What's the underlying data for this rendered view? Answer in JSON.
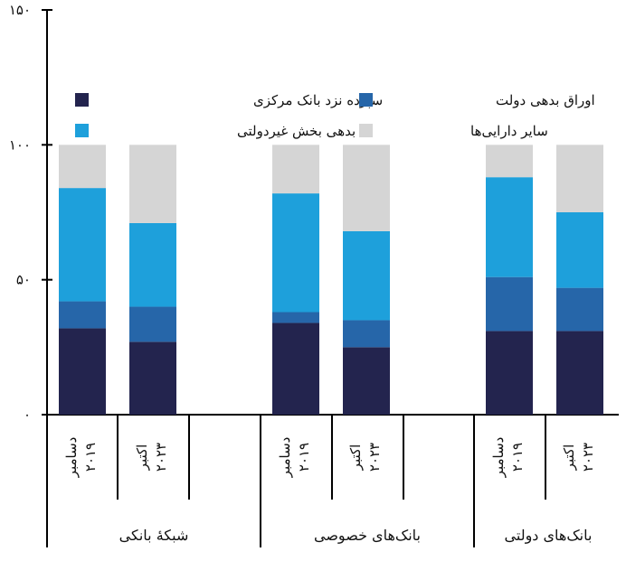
{
  "chart_data": {
    "type": "bar",
    "stacked": true,
    "title": "",
    "xlabel": "",
    "ylabel": "",
    "ylim": [
      0,
      150
    ],
    "y_ticks": [
      0,
      50,
      100,
      150
    ],
    "y_tick_labels": [
      "۰",
      "۵۰",
      "۱۰۰",
      "۱۵۰"
    ],
    "grid": false,
    "legend_position": "top",
    "categories": [
      {
        "group": "شبکهٔ بانکی",
        "line1": "دسامبر",
        "line2": "۲۰۱۹"
      },
      {
        "group": "شبکهٔ بانکی",
        "line1": "اکتبر",
        "line2": "۲۰۲۳"
      },
      {
        "group": "بانک‌های خصوصی",
        "line1": "دسامبر",
        "line2": "۲۰۱۹"
      },
      {
        "group": "بانک‌های خصوصی",
        "line1": "اکتبر",
        "line2": "۲۰۲۳"
      },
      {
        "group": "بانک‌های دولتی",
        "line1": "دسامبر",
        "line2": "۲۰۱۹"
      },
      {
        "group": "بانک‌های دولتی",
        "line1": "اکتبر",
        "line2": "۲۰۲۳"
      }
    ],
    "groups": [
      "شبکهٔ بانکی",
      "بانک‌های خصوصی",
      "بانک‌های دولتی"
    ],
    "series": [
      {
        "name": "سپرده نزد بانک مرکزی",
        "color": "#23244e",
        "values": [
          32,
          27,
          34,
          25,
          31,
          31
        ]
      },
      {
        "name": "اوراق بدهی دولت",
        "color": "#2666a9",
        "values": [
          10,
          13,
          4,
          10,
          20,
          16
        ]
      },
      {
        "name": "بدهی بخش غیردولتی",
        "color": "#1ea0db",
        "values": [
          42,
          31,
          44,
          33,
          37,
          28
        ]
      },
      {
        "name": "سایر دارایی‌ها",
        "color": "#d5d5d5",
        "values": [
          16,
          29,
          18,
          32,
          12,
          25
        ]
      }
    ]
  }
}
